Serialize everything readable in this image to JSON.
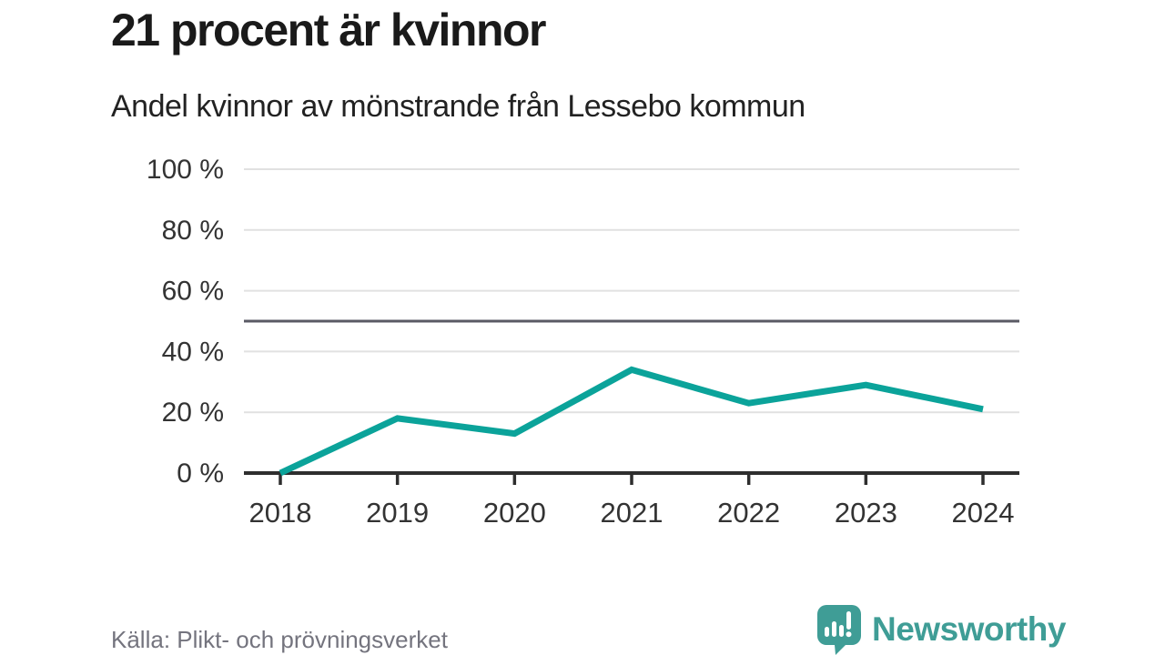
{
  "header": {
    "title": "21 procent är kvinnor",
    "subtitle": "Andel kvinnor av mönstrande från Lessebo kommun"
  },
  "footer": {
    "source": "Källa: Plikt- och prövningsverket",
    "logo_text": "Newsworthy"
  },
  "colors": {
    "line": "#0ba39a",
    "grid": "#e1e1e1",
    "axis": "#2e2e2e",
    "reference_line": "#5a5a64",
    "tick_label": "#333333",
    "title": "#1a1a1a",
    "source": "#74747e",
    "logo": "#3f9d96"
  },
  "chart_data": {
    "type": "line",
    "title": "21 procent är kvinnor",
    "subtitle": "Andel kvinnor av mönstrande från Lessebo kommun",
    "x": [
      2018,
      2019,
      2020,
      2021,
      2022,
      2023,
      2024
    ],
    "series": [
      {
        "name": "Andel kvinnor av mönstrande",
        "values": [
          0,
          18,
          13,
          34,
          23,
          29,
          21
        ]
      }
    ],
    "unit": "%",
    "xlabel": "",
    "ylabel": "",
    "ylim": [
      0,
      100
    ],
    "yticks": [
      0,
      20,
      40,
      60,
      80,
      100
    ],
    "ytick_suffix": " %",
    "reference_line": 50,
    "grid": true,
    "legend": "none"
  }
}
